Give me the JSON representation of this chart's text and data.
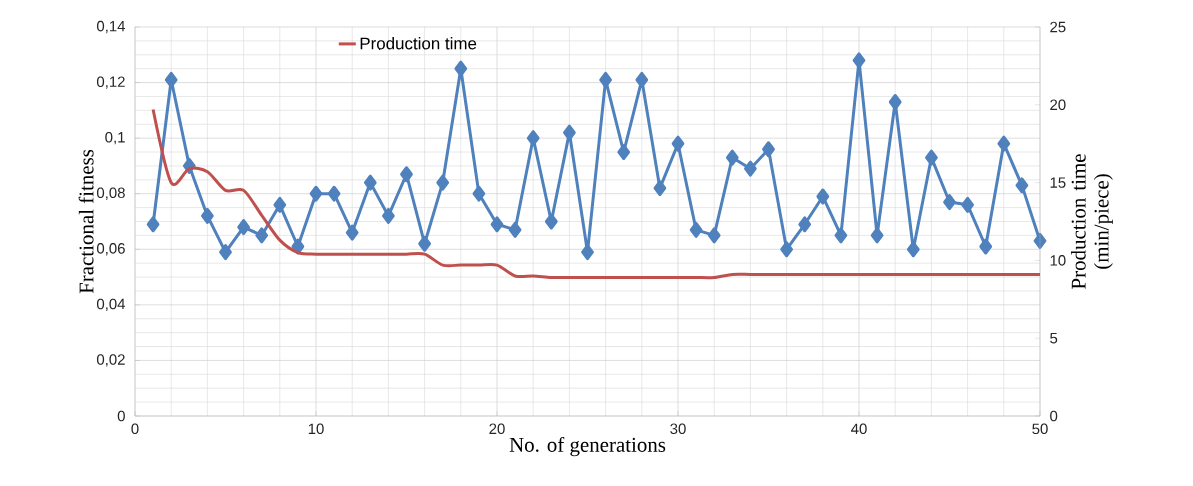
{
  "chart_data": {
    "type": "line",
    "xlabel": "No. of generations",
    "ylabel": "Fractional  fitness",
    "y2label": "Production time (min/piece)",
    "x": [
      1,
      2,
      3,
      4,
      5,
      6,
      7,
      8,
      9,
      10,
      11,
      12,
      13,
      14,
      15,
      16,
      17,
      18,
      19,
      20,
      21,
      22,
      23,
      24,
      25,
      26,
      27,
      28,
      29,
      30,
      31,
      32,
      33,
      34,
      35,
      36,
      37,
      38,
      39,
      40,
      41,
      42,
      43,
      44,
      45,
      46,
      47,
      48,
      49,
      50
    ],
    "series": [
      {
        "color": "#4f81bd",
        "marker": "diamond",
        "values": [
          0.069,
          0.121,
          0.09,
          0.072,
          0.059,
          0.068,
          0.065,
          0.076,
          0.061,
          0.08,
          0.08,
          0.066,
          0.084,
          0.072,
          0.087,
          0.062,
          0.084,
          0.125,
          0.08,
          0.069,
          0.067,
          0.1,
          0.07,
          0.102,
          0.059,
          0.121,
          0.095,
          0.121,
          0.082,
          0.098,
          0.067,
          0.065,
          0.093,
          0.089,
          0.096,
          0.06,
          0.069,
          0.079,
          0.065,
          0.128,
          0.065,
          0.113,
          0.06,
          0.093,
          0.077,
          0.076,
          0.061,
          0.098,
          0.083,
          0.063
        ]
      },
      {
        "name": "Production time",
        "color": "#c0504d",
        "marker": "none",
        "axis": "y2",
        "values": [
          19.7,
          15.0,
          15.9,
          15.7,
          14.5,
          14.5,
          12.9,
          11.3,
          10.5,
          10.4,
          10.4,
          10.4,
          10.4,
          10.4,
          10.4,
          10.4,
          9.7,
          9.7,
          9.7,
          9.7,
          9.0,
          9.0,
          8.9,
          8.9,
          8.9,
          8.9,
          8.9,
          8.9,
          8.9,
          8.9,
          8.9,
          8.9,
          9.1,
          9.1,
          9.1,
          9.1,
          9.1,
          9.1,
          9.1,
          9.1,
          9.1,
          9.1,
          9.1,
          9.1,
          9.1,
          9.1,
          9.1,
          9.1,
          9.1,
          9.1
        ]
      }
    ],
    "xlim": [
      0,
      50
    ],
    "xticks": [
      0,
      10,
      20,
      30,
      40,
      50
    ],
    "ylim": [
      0,
      0.14
    ],
    "yticks": [
      {
        "value": 0,
        "label": "0"
      },
      {
        "value": 0.02,
        "label": "0,02"
      },
      {
        "value": 0.04,
        "label": "0,04"
      },
      {
        "value": 0.06,
        "label": "0,06"
      },
      {
        "value": 0.08,
        "label": "0,08"
      },
      {
        "value": 0.1,
        "label": "0,1"
      },
      {
        "value": 0.12,
        "label": "0,12"
      },
      {
        "value": 0.14,
        "label": "0,14"
      }
    ],
    "y2lim": [
      0,
      25
    ],
    "y2ticks": [
      0,
      5,
      10,
      15,
      20,
      25
    ],
    "grid": true,
    "legend": "top"
  }
}
